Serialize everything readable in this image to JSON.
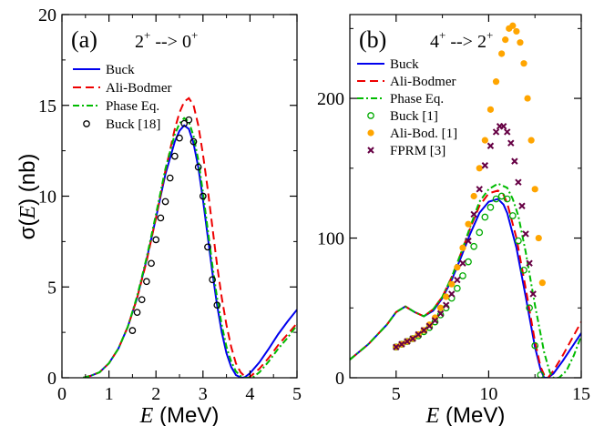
{
  "chart_data": [
    {
      "type": "line",
      "panel_label": "(a)",
      "title_main": "2",
      "title_sup1": "+",
      "title_mid": " --> 0",
      "title_sup2": "+",
      "xlabel_italic": "E",
      "xlabel_rest": " (MeV)",
      "ylabel_sigma": "σ(",
      "ylabel_italic": "E",
      "ylabel_rest": ") (nb)",
      "xlim": [
        0,
        5
      ],
      "ylim": [
        0,
        20
      ],
      "xticks": [
        0,
        1,
        2,
        3,
        4,
        5
      ],
      "yticks": [
        0,
        5,
        10,
        15,
        20
      ],
      "legend_position": "top-left",
      "series": [
        {
          "name": "Buck",
          "color": "#0000ee",
          "style": "solid",
          "x": [
            0.45,
            0.6,
            0.8,
            1.0,
            1.2,
            1.4,
            1.6,
            1.8,
            2.0,
            2.2,
            2.4,
            2.5,
            2.6,
            2.7,
            2.8,
            2.9,
            3.0,
            3.1,
            3.2,
            3.3,
            3.4,
            3.5,
            3.6,
            3.7,
            3.8,
            3.85,
            3.9,
            4.0,
            4.2,
            4.4,
            4.6,
            4.8,
            5.0
          ],
          "y": [
            0,
            0.1,
            0.3,
            0.8,
            1.6,
            2.8,
            4.4,
            6.5,
            8.8,
            11.2,
            13.0,
            13.6,
            13.9,
            13.7,
            12.9,
            11.6,
            9.8,
            7.8,
            5.8,
            4.0,
            2.5,
            1.35,
            0.6,
            0.15,
            0.02,
            0.0,
            0.05,
            0.25,
            0.85,
            1.6,
            2.4,
            3.1,
            3.75
          ]
        },
        {
          "name": "Ali-Bodmer",
          "color": "#ee0000",
          "style": "dashed",
          "x": [
            0.45,
            0.6,
            0.8,
            1.0,
            1.2,
            1.4,
            1.6,
            1.8,
            2.0,
            2.2,
            2.4,
            2.5,
            2.6,
            2.7,
            2.8,
            2.9,
            3.0,
            3.1,
            3.2,
            3.3,
            3.4,
            3.5,
            3.6,
            3.7,
            3.8,
            3.9,
            3.95,
            4.0,
            4.2,
            4.4,
            4.6,
            4.8,
            5.0
          ],
          "y": [
            0,
            0.1,
            0.3,
            0.8,
            1.6,
            2.8,
            4.4,
            6.4,
            8.8,
            11.4,
            13.7,
            14.6,
            15.2,
            15.4,
            15.0,
            13.9,
            12.3,
            10.4,
            8.3,
            6.2,
            4.4,
            2.9,
            1.7,
            0.8,
            0.3,
            0.05,
            0.0,
            0.05,
            0.5,
            1.1,
            1.8,
            2.4,
            3.0
          ]
        },
        {
          "name": "Phase Eq.",
          "color": "#00bb00",
          "style": "dashdot",
          "x": [
            0.45,
            0.6,
            0.8,
            1.0,
            1.2,
            1.4,
            1.6,
            1.8,
            2.0,
            2.2,
            2.4,
            2.5,
            2.6,
            2.7,
            2.8,
            2.9,
            3.0,
            3.1,
            3.2,
            3.3,
            3.4,
            3.5,
            3.6,
            3.7,
            3.8,
            3.9,
            4.0,
            4.05,
            4.2,
            4.4,
            4.6,
            4.8,
            5.0
          ],
          "y": [
            0,
            0.1,
            0.3,
            0.8,
            1.6,
            2.8,
            4.5,
            6.6,
            9.0,
            11.5,
            13.4,
            14.0,
            14.3,
            14.1,
            13.3,
            12.0,
            10.2,
            8.2,
            6.2,
            4.4,
            2.9,
            1.7,
            0.9,
            0.35,
            0.1,
            0.0,
            0.0,
            0.0,
            0.3,
            0.9,
            1.6,
            2.2,
            2.9
          ]
        },
        {
          "name": "Buck [18]",
          "color": "#000000",
          "marker": "circle",
          "x": [
            1.5,
            1.6,
            1.7,
            1.8,
            1.9,
            2.0,
            2.1,
            2.2,
            2.3,
            2.4,
            2.5,
            2.6,
            2.7,
            2.8,
            2.9,
            3.0,
            3.1,
            3.2,
            3.3
          ],
          "y": [
            2.6,
            3.6,
            4.3,
            5.3,
            6.3,
            7.6,
            8.8,
            9.7,
            11.0,
            12.2,
            13.2,
            14.0,
            14.2,
            13.0,
            11.6,
            10.0,
            7.2,
            5.4,
            4.0
          ]
        }
      ]
    },
    {
      "type": "line",
      "panel_label": "(b)",
      "title_main": "4",
      "title_sup1": "+",
      "title_mid": " --> 2",
      "title_sup2": "+",
      "xlabel_italic": "E",
      "xlabel_rest": " (MeV)",
      "xlim": [
        2.5,
        15
      ],
      "ylim": [
        0,
        260
      ],
      "xticks": [
        5,
        10,
        15
      ],
      "yticks": [
        0,
        100,
        200
      ],
      "legend_position": "top-left",
      "series": [
        {
          "name": "Buck",
          "color": "#0000ee",
          "style": "solid",
          "x": [
            2.5,
            3.5,
            4.5,
            5.0,
            5.5,
            6.0,
            6.5,
            7.0,
            7.5,
            8.0,
            8.5,
            9.0,
            9.5,
            10.0,
            10.5,
            10.8,
            11.0,
            11.5,
            12.0,
            12.5,
            12.8,
            13.0,
            13.2,
            13.5,
            14.0,
            14.5,
            15.0
          ],
          "y": [
            13,
            24,
            38,
            47,
            51,
            47,
            44,
            48,
            57,
            70,
            86,
            103,
            118,
            126,
            128,
            124,
            118,
            93,
            58,
            22,
            6,
            0,
            0,
            3,
            12,
            22,
            32
          ]
        },
        {
          "name": "Ali-Bodmer",
          "color": "#ee0000",
          "style": "dashed",
          "x": [
            2.5,
            3.5,
            4.5,
            5.0,
            5.5,
            6.0,
            6.5,
            7.0,
            7.5,
            8.0,
            8.5,
            9.0,
            9.5,
            10.0,
            10.5,
            10.8,
            11.0,
            11.5,
            12.0,
            12.5,
            12.8,
            13.0,
            13.2,
            13.5,
            14.0,
            14.5,
            15.0
          ],
          "y": [
            13,
            24,
            38,
            47,
            51,
            47,
            44,
            49,
            58,
            72,
            89,
            107,
            123,
            132,
            134,
            131,
            125,
            100,
            64,
            26,
            8,
            2,
            0,
            5,
            16,
            28,
            40
          ]
        },
        {
          "name": "Phase Eq.",
          "color": "#00bb00",
          "style": "dashdot",
          "x": [
            2.5,
            3.5,
            4.5,
            5.0,
            5.5,
            6.0,
            6.5,
            7.0,
            7.5,
            8.0,
            8.5,
            9.0,
            9.5,
            10.0,
            10.5,
            11.0,
            11.3,
            11.6,
            12.0,
            12.5,
            13.0,
            13.3,
            13.5,
            13.8,
            14.2,
            14.6,
            15.0
          ],
          "y": [
            13,
            24,
            38,
            47,
            51,
            47,
            44,
            49,
            58,
            72,
            89,
            108,
            126,
            135,
            139,
            136,
            128,
            116,
            90,
            52,
            18,
            4,
            0,
            0,
            5,
            16,
            30
          ]
        },
        {
          "name": "Buck [1]",
          "color": "#00aa00",
          "marker": "circle",
          "x": [
            5.0,
            5.3,
            5.6,
            5.9,
            6.2,
            6.5,
            6.8,
            7.1,
            7.4,
            7.7,
            8.0,
            8.3,
            8.6,
            8.9,
            9.2,
            9.5,
            9.8,
            10.1,
            10.4,
            10.7,
            11.0,
            11.3,
            11.6,
            11.9,
            12.2,
            12.5,
            12.8
          ],
          "y": [
            22,
            24,
            26,
            28,
            30,
            33,
            36,
            40,
            45,
            50,
            57,
            64,
            73,
            83,
            94,
            104,
            115,
            122,
            128,
            130,
            128,
            116,
            98,
            77,
            50,
            23,
            2
          ]
        },
        {
          "name": "Ali-Bod. [1]",
          "color": "#ffa500",
          "marker": "dot",
          "x": [
            5.0,
            5.3,
            5.6,
            5.9,
            6.2,
            6.5,
            6.8,
            7.1,
            7.4,
            7.7,
            8.0,
            8.3,
            8.6,
            8.9,
            9.2,
            9.5,
            9.8,
            10.1,
            10.4,
            10.7,
            10.9,
            11.1,
            11.3,
            11.5,
            11.7,
            11.9,
            12.1,
            12.3,
            12.5,
            12.7,
            12.9
          ],
          "y": [
            22,
            24,
            26,
            28,
            31,
            34,
            38,
            43,
            50,
            58,
            67,
            79,
            93,
            110,
            130,
            150,
            170,
            192,
            212,
            232,
            242,
            250,
            252,
            248,
            240,
            225,
            200,
            170,
            135,
            100,
            68
          ]
        },
        {
          "name": "FPRM [3]",
          "color": "#660044",
          "marker": "x",
          "x": [
            5.0,
            5.3,
            5.6,
            5.9,
            6.2,
            6.5,
            6.8,
            7.1,
            7.4,
            7.7,
            8.0,
            8.3,
            8.6,
            8.9,
            9.2,
            9.5,
            9.8,
            10.1,
            10.4,
            10.6,
            10.8,
            11.0,
            11.2,
            11.4,
            11.6,
            11.8,
            12.0,
            12.2,
            12.4
          ],
          "y": [
            22,
            24,
            26,
            28,
            31,
            34,
            37,
            41,
            46,
            52,
            60,
            70,
            82,
            98,
            117,
            135,
            152,
            166,
            176,
            180,
            180,
            176,
            168,
            155,
            140,
            123,
            103,
            82,
            60
          ]
        }
      ]
    }
  ]
}
